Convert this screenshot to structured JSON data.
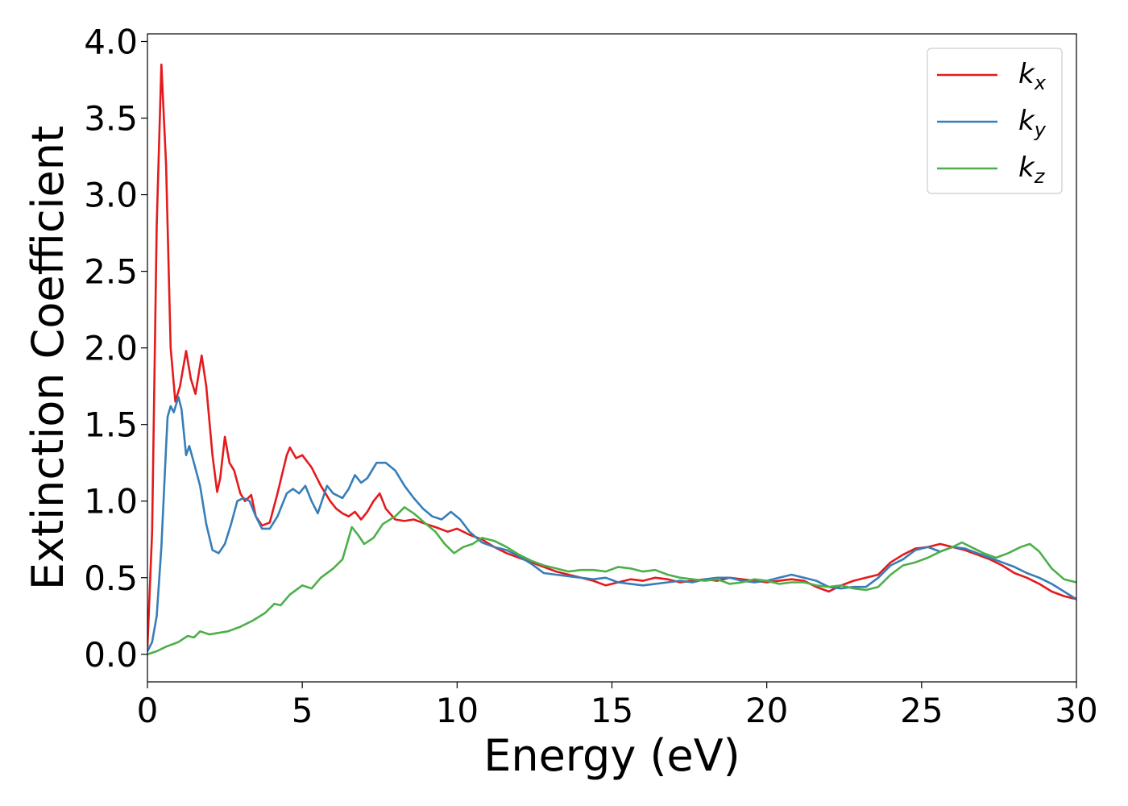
{
  "chart_data": {
    "type": "line",
    "xlabel": "Energy (eV)",
    "ylabel": "Extinction Coefficient",
    "xlim": [
      0,
      30
    ],
    "ylim": [
      -0.18,
      4.05
    ],
    "xticks": [
      0,
      5,
      10,
      15,
      20,
      25,
      30
    ],
    "xtick_labels": [
      "0",
      "5",
      "10",
      "15",
      "20",
      "25",
      "30"
    ],
    "yticks": [
      0.0,
      0.5,
      1.0,
      1.5,
      2.0,
      2.5,
      3.0,
      3.5,
      4.0
    ],
    "ytick_labels": [
      "0.0",
      "0.5",
      "1.0",
      "1.5",
      "2.0",
      "2.5",
      "3.0",
      "3.5",
      "4.0"
    ],
    "grid": false,
    "legend_position": "top-right",
    "series": [
      {
        "name": "k",
        "subscript": "x",
        "color": "#e41a1c",
        "points": [
          [
            0,
            0.05
          ],
          [
            0.15,
            0.8
          ],
          [
            0.3,
            2.8
          ],
          [
            0.45,
            3.85
          ],
          [
            0.6,
            3.2
          ],
          [
            0.75,
            2.0
          ],
          [
            0.9,
            1.65
          ],
          [
            1.05,
            1.75
          ],
          [
            1.25,
            1.98
          ],
          [
            1.4,
            1.8
          ],
          [
            1.55,
            1.7
          ],
          [
            1.75,
            1.95
          ],
          [
            1.9,
            1.75
          ],
          [
            2.1,
            1.3
          ],
          [
            2.25,
            1.06
          ],
          [
            2.35,
            1.15
          ],
          [
            2.5,
            1.42
          ],
          [
            2.65,
            1.25
          ],
          [
            2.8,
            1.2
          ],
          [
            3.0,
            1.05
          ],
          [
            3.15,
            1.0
          ],
          [
            3.35,
            1.04
          ],
          [
            3.5,
            0.9
          ],
          [
            3.7,
            0.84
          ],
          [
            3.95,
            0.86
          ],
          [
            4.2,
            1.05
          ],
          [
            4.5,
            1.3
          ],
          [
            4.6,
            1.35
          ],
          [
            4.8,
            1.28
          ],
          [
            5.0,
            1.3
          ],
          [
            5.3,
            1.22
          ],
          [
            5.6,
            1.1
          ],
          [
            5.9,
            1.0
          ],
          [
            6.1,
            0.95
          ],
          [
            6.3,
            0.92
          ],
          [
            6.5,
            0.9
          ],
          [
            6.7,
            0.93
          ],
          [
            6.9,
            0.88
          ],
          [
            7.1,
            0.93
          ],
          [
            7.3,
            1.0
          ],
          [
            7.5,
            1.05
          ],
          [
            7.7,
            0.95
          ],
          [
            8.0,
            0.88
          ],
          [
            8.3,
            0.87
          ],
          [
            8.6,
            0.88
          ],
          [
            9.0,
            0.85
          ],
          [
            9.3,
            0.83
          ],
          [
            9.7,
            0.8
          ],
          [
            10.0,
            0.82
          ],
          [
            10.4,
            0.78
          ],
          [
            10.8,
            0.75
          ],
          [
            11.2,
            0.7
          ],
          [
            11.6,
            0.66
          ],
          [
            12.0,
            0.63
          ],
          [
            12.4,
            0.6
          ],
          [
            12.8,
            0.57
          ],
          [
            13.2,
            0.54
          ],
          [
            13.6,
            0.52
          ],
          [
            14.0,
            0.5
          ],
          [
            14.4,
            0.48
          ],
          [
            14.8,
            0.45
          ],
          [
            15.2,
            0.47
          ],
          [
            15.6,
            0.49
          ],
          [
            16.0,
            0.48
          ],
          [
            16.4,
            0.5
          ],
          [
            16.8,
            0.49
          ],
          [
            17.2,
            0.47
          ],
          [
            17.6,
            0.48
          ],
          [
            18.0,
            0.49
          ],
          [
            18.4,
            0.48
          ],
          [
            18.8,
            0.5
          ],
          [
            19.2,
            0.49
          ],
          [
            19.6,
            0.48
          ],
          [
            20.0,
            0.47
          ],
          [
            20.4,
            0.48
          ],
          [
            20.8,
            0.49
          ],
          [
            21.2,
            0.48
          ],
          [
            21.6,
            0.44
          ],
          [
            22.0,
            0.41
          ],
          [
            22.4,
            0.45
          ],
          [
            22.8,
            0.48
          ],
          [
            23.2,
            0.5
          ],
          [
            23.6,
            0.52
          ],
          [
            24.0,
            0.6
          ],
          [
            24.4,
            0.65
          ],
          [
            24.8,
            0.69
          ],
          [
            25.2,
            0.7
          ],
          [
            25.6,
            0.72
          ],
          [
            26.0,
            0.7
          ],
          [
            26.4,
            0.68
          ],
          [
            26.8,
            0.65
          ],
          [
            27.2,
            0.62
          ],
          [
            27.6,
            0.58
          ],
          [
            28.0,
            0.53
          ],
          [
            28.4,
            0.5
          ],
          [
            28.8,
            0.46
          ],
          [
            29.2,
            0.41
          ],
          [
            29.6,
            0.38
          ],
          [
            30.0,
            0.36
          ]
        ]
      },
      {
        "name": "k",
        "subscript": "y",
        "color": "#377eb8",
        "points": [
          [
            0,
            0.02
          ],
          [
            0.15,
            0.08
          ],
          [
            0.3,
            0.25
          ],
          [
            0.45,
            0.7
          ],
          [
            0.6,
            1.35
          ],
          [
            0.65,
            1.55
          ],
          [
            0.75,
            1.62
          ],
          [
            0.85,
            1.58
          ],
          [
            1.0,
            1.68
          ],
          [
            1.1,
            1.6
          ],
          [
            1.25,
            1.3
          ],
          [
            1.35,
            1.36
          ],
          [
            1.5,
            1.25
          ],
          [
            1.7,
            1.1
          ],
          [
            1.9,
            0.85
          ],
          [
            2.1,
            0.68
          ],
          [
            2.3,
            0.66
          ],
          [
            2.5,
            0.72
          ],
          [
            2.7,
            0.85
          ],
          [
            2.9,
            1.0
          ],
          [
            3.1,
            1.02
          ],
          [
            3.3,
            1.0
          ],
          [
            3.5,
            0.9
          ],
          [
            3.7,
            0.82
          ],
          [
            3.95,
            0.82
          ],
          [
            4.2,
            0.9
          ],
          [
            4.5,
            1.05
          ],
          [
            4.7,
            1.08
          ],
          [
            4.9,
            1.05
          ],
          [
            5.1,
            1.1
          ],
          [
            5.3,
            1.0
          ],
          [
            5.5,
            0.92
          ],
          [
            5.8,
            1.1
          ],
          [
            6.0,
            1.05
          ],
          [
            6.3,
            1.02
          ],
          [
            6.5,
            1.08
          ],
          [
            6.7,
            1.17
          ],
          [
            6.9,
            1.12
          ],
          [
            7.1,
            1.15
          ],
          [
            7.4,
            1.25
          ],
          [
            7.7,
            1.25
          ],
          [
            8.0,
            1.2
          ],
          [
            8.3,
            1.1
          ],
          [
            8.6,
            1.02
          ],
          [
            8.9,
            0.95
          ],
          [
            9.2,
            0.9
          ],
          [
            9.5,
            0.88
          ],
          [
            9.8,
            0.93
          ],
          [
            10.1,
            0.88
          ],
          [
            10.4,
            0.8
          ],
          [
            10.8,
            0.73
          ],
          [
            11.2,
            0.7
          ],
          [
            11.6,
            0.68
          ],
          [
            12.0,
            0.64
          ],
          [
            12.4,
            0.59
          ],
          [
            12.8,
            0.53
          ],
          [
            13.2,
            0.52
          ],
          [
            13.6,
            0.51
          ],
          [
            14.0,
            0.5
          ],
          [
            14.4,
            0.49
          ],
          [
            14.8,
            0.5
          ],
          [
            15.2,
            0.47
          ],
          [
            15.6,
            0.46
          ],
          [
            16.0,
            0.45
          ],
          [
            16.4,
            0.46
          ],
          [
            16.8,
            0.47
          ],
          [
            17.2,
            0.48
          ],
          [
            17.6,
            0.47
          ],
          [
            18.0,
            0.49
          ],
          [
            18.4,
            0.5
          ],
          [
            18.8,
            0.5
          ],
          [
            19.2,
            0.48
          ],
          [
            19.6,
            0.47
          ],
          [
            20.0,
            0.48
          ],
          [
            20.4,
            0.5
          ],
          [
            20.8,
            0.52
          ],
          [
            21.2,
            0.5
          ],
          [
            21.6,
            0.48
          ],
          [
            22.0,
            0.44
          ],
          [
            22.4,
            0.43
          ],
          [
            22.8,
            0.44
          ],
          [
            23.2,
            0.44
          ],
          [
            23.6,
            0.5
          ],
          [
            24.0,
            0.58
          ],
          [
            24.4,
            0.62
          ],
          [
            24.8,
            0.68
          ],
          [
            25.2,
            0.7
          ],
          [
            25.6,
            0.67
          ],
          [
            26.0,
            0.7
          ],
          [
            26.4,
            0.69
          ],
          [
            26.8,
            0.66
          ],
          [
            27.2,
            0.63
          ],
          [
            27.6,
            0.6
          ],
          [
            28.0,
            0.57
          ],
          [
            28.4,
            0.53
          ],
          [
            28.8,
            0.5
          ],
          [
            29.2,
            0.46
          ],
          [
            29.6,
            0.41
          ],
          [
            30.0,
            0.36
          ]
        ]
      },
      {
        "name": "k",
        "subscript": "z",
        "color": "#4daf4a",
        "points": [
          [
            0,
            0.0
          ],
          [
            0.3,
            0.02
          ],
          [
            0.6,
            0.05
          ],
          [
            1.0,
            0.08
          ],
          [
            1.3,
            0.12
          ],
          [
            1.5,
            0.11
          ],
          [
            1.7,
            0.15
          ],
          [
            2.0,
            0.13
          ],
          [
            2.3,
            0.14
          ],
          [
            2.6,
            0.15
          ],
          [
            3.0,
            0.18
          ],
          [
            3.4,
            0.22
          ],
          [
            3.8,
            0.27
          ],
          [
            4.1,
            0.33
          ],
          [
            4.3,
            0.32
          ],
          [
            4.6,
            0.39
          ],
          [
            5.0,
            0.45
          ],
          [
            5.3,
            0.43
          ],
          [
            5.6,
            0.5
          ],
          [
            6.0,
            0.56
          ],
          [
            6.3,
            0.62
          ],
          [
            6.6,
            0.83
          ],
          [
            6.8,
            0.78
          ],
          [
            7.0,
            0.72
          ],
          [
            7.3,
            0.76
          ],
          [
            7.6,
            0.85
          ],
          [
            8.0,
            0.9
          ],
          [
            8.3,
            0.96
          ],
          [
            8.6,
            0.92
          ],
          [
            9.0,
            0.85
          ],
          [
            9.3,
            0.8
          ],
          [
            9.6,
            0.72
          ],
          [
            9.9,
            0.66
          ],
          [
            10.2,
            0.7
          ],
          [
            10.5,
            0.72
          ],
          [
            10.8,
            0.76
          ],
          [
            11.2,
            0.74
          ],
          [
            11.6,
            0.7
          ],
          [
            12.0,
            0.65
          ],
          [
            12.4,
            0.61
          ],
          [
            12.8,
            0.58
          ],
          [
            13.2,
            0.56
          ],
          [
            13.6,
            0.54
          ],
          [
            14.0,
            0.55
          ],
          [
            14.4,
            0.55
          ],
          [
            14.8,
            0.54
          ],
          [
            15.2,
            0.57
          ],
          [
            15.6,
            0.56
          ],
          [
            16.0,
            0.54
          ],
          [
            16.4,
            0.55
          ],
          [
            16.8,
            0.52
          ],
          [
            17.2,
            0.5
          ],
          [
            17.6,
            0.49
          ],
          [
            18.0,
            0.48
          ],
          [
            18.4,
            0.49
          ],
          [
            18.8,
            0.46
          ],
          [
            19.2,
            0.47
          ],
          [
            19.6,
            0.49
          ],
          [
            20.0,
            0.48
          ],
          [
            20.4,
            0.46
          ],
          [
            20.8,
            0.47
          ],
          [
            21.2,
            0.47
          ],
          [
            21.6,
            0.45
          ],
          [
            22.0,
            0.44
          ],
          [
            22.4,
            0.45
          ],
          [
            22.8,
            0.43
          ],
          [
            23.2,
            0.42
          ],
          [
            23.6,
            0.44
          ],
          [
            24.0,
            0.52
          ],
          [
            24.4,
            0.58
          ],
          [
            24.8,
            0.6
          ],
          [
            25.2,
            0.63
          ],
          [
            25.6,
            0.67
          ],
          [
            26.0,
            0.7
          ],
          [
            26.3,
            0.73
          ],
          [
            26.6,
            0.7
          ],
          [
            27.0,
            0.66
          ],
          [
            27.4,
            0.63
          ],
          [
            27.8,
            0.66
          ],
          [
            28.2,
            0.7
          ],
          [
            28.5,
            0.72
          ],
          [
            28.8,
            0.67
          ],
          [
            29.2,
            0.56
          ],
          [
            29.6,
            0.49
          ],
          [
            30.0,
            0.47
          ]
        ]
      }
    ]
  }
}
